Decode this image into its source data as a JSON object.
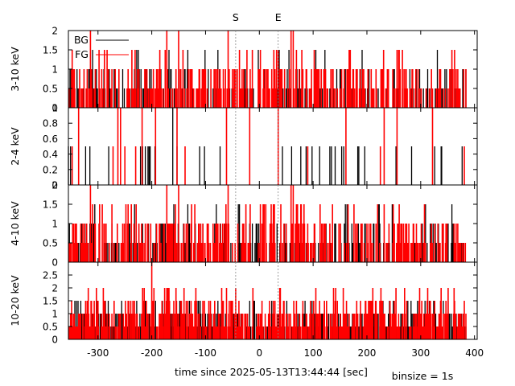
{
  "chart_data": {
    "type": "bar",
    "xlabel": "time since 2025-05-13T13:44:44 [sec]",
    "binsize_label": "binsize = 1s",
    "xlim": [
      -355,
      405
    ],
    "xticks": [
      -300,
      -200,
      -100,
      0,
      100,
      200,
      300,
      400
    ],
    "markers": [
      {
        "label": "S",
        "x": -44
      },
      {
        "label": "E",
        "x": 35
      }
    ],
    "legend": {
      "placement": "top-left",
      "entries": [
        {
          "name": "BG",
          "color": "#000000"
        },
        {
          "name": "FG",
          "color": "#ff0000"
        }
      ]
    },
    "panels": [
      {
        "ylabel": "3-10 keV",
        "ylim": [
          0,
          2
        ],
        "yticks": [
          "0",
          "0.5",
          "1",
          "1.5",
          "2"
        ],
        "series": [
          {
            "name": "BG",
            "color": "#000000",
            "seed": 11,
            "density": 0.3,
            "levels": [
              [
                0.5,
                0.6
              ],
              [
                1,
                0.35
              ],
              [
                1.5,
                0.05
              ]
            ],
            "spikes": [
              [
                -133,
                1.5
              ],
              [
                -77,
                1.5
              ]
            ]
          },
          {
            "name": "FG",
            "color": "#ff0000",
            "seed": 23,
            "density": 0.38,
            "levels": [
              [
                0.5,
                0.45
              ],
              [
                1,
                0.45
              ],
              [
                1.5,
                0.1
              ]
            ],
            "spikes": [
              [
                -314,
                2
              ],
              [
                -172,
                2
              ],
              [
                -150,
                2
              ],
              [
                -58,
                2
              ],
              [
                59,
                2
              ],
              [
                63,
                2
              ]
            ]
          }
        ]
      },
      {
        "ylabel": "2-4 keV",
        "ylim": [
          0,
          1
        ],
        "yticks": [
          "0",
          "0.2",
          "0.4",
          "0.6",
          "0.8",
          "1"
        ],
        "series": [
          {
            "name": "BG",
            "color": "#000000",
            "seed": 37,
            "density": 0.05,
            "levels": [
              [
                0.5,
                1.0
              ]
            ],
            "spikes": [
              [
                -161,
                1
              ],
              [
                -280,
                0.5
              ],
              [
                -355,
                0.5
              ]
            ]
          },
          {
            "name": "FG",
            "color": "#ff0000",
            "seed": 41,
            "density": 0.02,
            "levels": [
              [
                0.5,
                0.6
              ],
              [
                1,
                0.4
              ]
            ],
            "spikes": [
              [
                -263,
                1
              ],
              [
                -258,
                1
              ],
              [
                -218,
                1
              ],
              [
                -193,
                1
              ],
              [
                -153,
                1
              ],
              [
                -138,
                0.5
              ],
              [
                -61,
                1
              ],
              [
                35,
                1
              ],
              [
                232,
                1
              ]
            ]
          }
        ]
      },
      {
        "ylabel": "4-10 keV",
        "ylim": [
          0,
          2
        ],
        "yticks": [
          "0",
          "0.5",
          "1",
          "1.5",
          "2"
        ],
        "series": [
          {
            "name": "BG",
            "color": "#000000",
            "seed": 53,
            "density": 0.28,
            "levels": [
              [
                0.5,
                0.6
              ],
              [
                1,
                0.35
              ],
              [
                1.5,
                0.05
              ]
            ],
            "spikes": [
              [
                -133,
                1.5
              ],
              [
                -80,
                1.5
              ]
            ]
          },
          {
            "name": "FG",
            "color": "#ff0000",
            "seed": 67,
            "density": 0.36,
            "levels": [
              [
                0.5,
                0.45
              ],
              [
                1,
                0.45
              ],
              [
                1.5,
                0.1
              ]
            ],
            "spikes": [
              [
                -314,
                2
              ],
              [
                -172,
                2
              ],
              [
                -150,
                2
              ],
              [
                -58,
                2
              ],
              [
                59,
                2
              ],
              [
                63,
                2
              ]
            ]
          }
        ]
      },
      {
        "ylabel": "10-20 keV",
        "ylim": [
          0,
          3
        ],
        "yticks": [
          "0",
          "0.5",
          "1",
          "1.5",
          "2",
          "2.5"
        ],
        "series": [
          {
            "name": "BG",
            "color": "#000000",
            "seed": 79,
            "density": 0.55,
            "levels": [
              [
                0.5,
                0.5
              ],
              [
                1,
                0.4
              ],
              [
                1.5,
                0.1
              ]
            ],
            "spikes": [
              [
                -270,
                1.5
              ],
              [
                -130,
                1.5
              ],
              [
                230,
                1.5
              ]
            ]
          },
          {
            "name": "FG",
            "color": "#ff0000",
            "seed": 97,
            "density": 0.6,
            "levels": [
              [
                0.5,
                0.35
              ],
              [
                1,
                0.45
              ],
              [
                1.5,
                0.15
              ],
              [
                2,
                0.05
              ]
            ],
            "spikes": [
              [
                -200,
                3
              ],
              [
                -290,
                2
              ],
              [
                -170,
                2
              ],
              [
                105,
                2
              ],
              [
                270,
                2
              ],
              [
                -140,
                2
              ]
            ]
          }
        ]
      }
    ]
  }
}
